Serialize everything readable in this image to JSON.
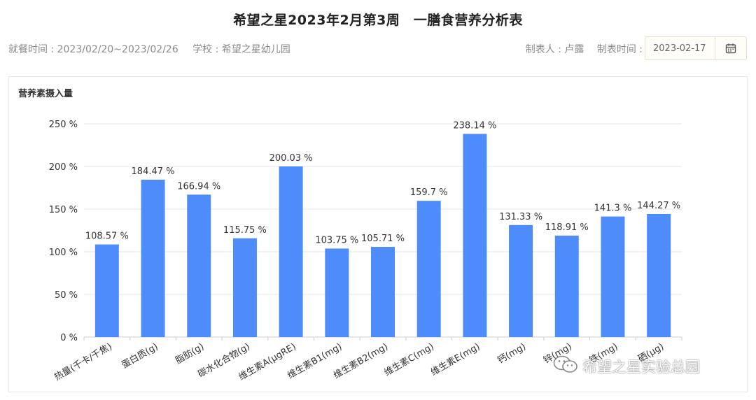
{
  "header": {
    "title": "希望之星2023年2月第3周　一膳食营养分析表",
    "dining_period": "就餐时间 : 2023/02/20~2023/02/26",
    "school": "学校 : 希望之星幼儿园",
    "maker": "制表人 : 卢露",
    "made_time_label": "制表时间 :",
    "date_value": "2023-02-17",
    "calendar_icon": "calendar-icon"
  },
  "panel": {
    "title": "营养素摄入量"
  },
  "watermark": {
    "text": "希望之星实验总园",
    "icon": "wechat-icon"
  },
  "colors": {
    "bar": "#4e8cfc",
    "grid": "#e6e6e6",
    "axis": "#cccccc"
  },
  "chart_data": {
    "type": "bar",
    "title": "营养素摄入量",
    "xlabel": "",
    "ylabel": "",
    "ylim": [
      0,
      250
    ],
    "yticks": [
      0,
      50,
      100,
      150,
      200,
      250
    ],
    "ytick_labels": [
      "0 %",
      "50 %",
      "100 %",
      "150 %",
      "200 %",
      "250 %"
    ],
    "grid": true,
    "categories": [
      "热量(千卡/千焦)",
      "蛋白质(g)",
      "脂肪(g)",
      "碳水化合物(g)",
      "维生素A(μgRE)",
      "维生素B1(mg)",
      "维生素B2(mg)",
      "维生素C(mg)",
      "维生素E(mg)",
      "钙(mg)",
      "锌(mg)",
      "铁(mg)",
      "硒(μg)"
    ],
    "values": [
      108.57,
      184.47,
      166.94,
      115.75,
      200.03,
      103.75,
      105.71,
      159.7,
      238.14,
      131.33,
      118.91,
      141.3,
      144.27
    ],
    "value_labels": [
      "108.57 %",
      "184.47 %",
      "166.94 %",
      "115.75 %",
      "200.03 %",
      "103.75 %",
      "105.71 %",
      "159.7 %",
      "238.14 %",
      "131.33 %",
      "118.91 %",
      "141.3 %",
      "144.27 %"
    ]
  }
}
